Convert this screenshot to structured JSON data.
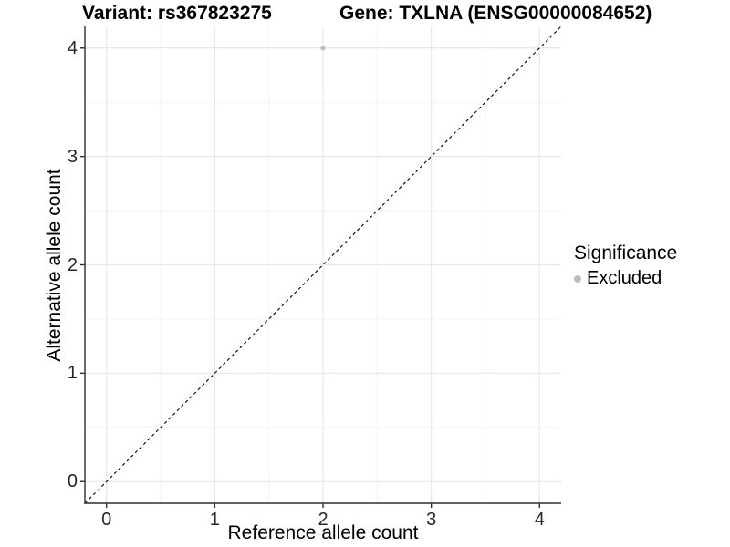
{
  "chart_data": {
    "type": "scatter",
    "titles": {
      "variant": "Variant: rs367823275",
      "gene": "Gene: TXLNA (ENSG00000084652)"
    },
    "xlabel": "Reference allele count",
    "ylabel": "Alternative allele count",
    "xlim": [
      -0.2,
      4.2
    ],
    "ylim": [
      -0.2,
      4.2
    ],
    "xticks": [
      0,
      1,
      2,
      3,
      4
    ],
    "yticks": [
      0,
      1,
      2,
      3,
      4
    ],
    "grid": {
      "major": true,
      "minor": true
    },
    "series": [
      {
        "name": "Excluded",
        "color": "#bebebe",
        "points": [
          {
            "x": 2,
            "y": 4
          }
        ]
      }
    ],
    "reference_line": {
      "type": "identity",
      "slope": 1,
      "intercept": 0,
      "style": "dashed",
      "color": "#000000"
    },
    "legend": {
      "title": "Significance",
      "position": "right",
      "entries": [
        {
          "label": "Excluded",
          "color": "#bebebe"
        }
      ]
    }
  },
  "colors": {
    "background": "#ffffff",
    "grid_major": "#e8e8e8",
    "grid_minor": "#f4f4f4",
    "axis_line": "#2e2e2e",
    "tick_text": "#262626",
    "point": "#bebebe"
  }
}
